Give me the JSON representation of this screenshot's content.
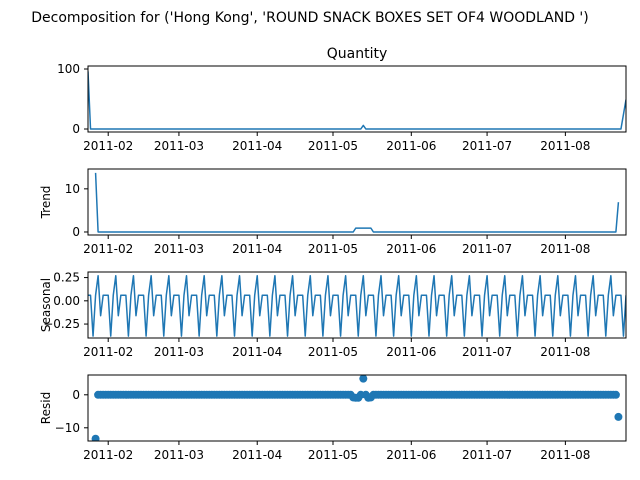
{
  "chart_data": {
    "type": "line",
    "suptitle": "Decomposition for ('Hong Kong', 'ROUND SNACK BOXES SET OF4 WOODLAND ')",
    "colors": {
      "series": "#1f77b4",
      "axis": "#000000"
    },
    "x_range": [
      "2011-01-24",
      "2011-08-25"
    ],
    "x_ticks": [
      "2011-02-01",
      "2011-03-01",
      "2011-04-01",
      "2011-05-01",
      "2011-06-01",
      "2011-07-01",
      "2011-08-01"
    ],
    "x_tick_labels": [
      "2011-02",
      "2011-03",
      "2011-04",
      "2011-05",
      "2011-06",
      "2011-07",
      "2011-08"
    ],
    "panels": [
      {
        "id": "observed",
        "type": "line",
        "title": "Quantity",
        "ylabel": "",
        "ylim": [
          -5,
          105
        ],
        "yticks": [
          0,
          100
        ],
        "yticklabels": [
          "0",
          "100"
        ],
        "points": [
          [
            "2011-01-24",
            96
          ],
          [
            "2011-01-25",
            0
          ],
          [
            "2011-05-12",
            0
          ],
          [
            "2011-05-13",
            6
          ],
          [
            "2011-05-14",
            0
          ],
          [
            "2011-08-23",
            0
          ],
          [
            "2011-08-25",
            49
          ]
        ]
      },
      {
        "id": "trend",
        "type": "line",
        "title": "",
        "ylabel": "Trend",
        "ylim": [
          -0.7,
          14.6
        ],
        "yticks": [
          0,
          10
        ],
        "yticklabels": [
          "0",
          "10"
        ],
        "points": [
          [
            "2011-01-27",
            13.7
          ],
          [
            "2011-01-28",
            0
          ],
          [
            "2011-05-09",
            0
          ],
          [
            "2011-05-10",
            0.9
          ],
          [
            "2011-05-16",
            0.9
          ],
          [
            "2011-05-17",
            0
          ],
          [
            "2011-08-21",
            0
          ],
          [
            "2011-08-22",
            6.9
          ]
        ]
      },
      {
        "id": "seasonal",
        "type": "line",
        "title": "",
        "ylabel": "Seasonal",
        "ylim": [
          -0.4,
          0.31
        ],
        "yticks": [
          0.25,
          0,
          -0.25
        ],
        "yticklabels": [
          "0.25",
          "0.00",
          "−0.25"
        ],
        "period_days": 7,
        "pattern_start": "2011-01-24",
        "pattern": [
          0.06,
          0.06,
          -0.38,
          0.06,
          0.27,
          -0.16,
          0.06
        ]
      },
      {
        "id": "resid",
        "type": "scatter",
        "title": "",
        "ylabel": "Resid",
        "ylim": [
          -14,
          6
        ],
        "yticks": [
          0,
          -10
        ],
        "yticklabels": [
          "0",
          "−10"
        ],
        "baseline": {
          "start": "2011-01-27",
          "end": "2011-08-22",
          "value": 0
        },
        "points": [
          [
            "2011-01-27",
            -13.3
          ],
          [
            "2011-05-09",
            -0.8
          ],
          [
            "2011-05-10",
            -0.9
          ],
          [
            "2011-05-11",
            -0.9
          ],
          [
            "2011-05-13",
            4.9
          ],
          [
            "2011-05-15",
            -0.9
          ],
          [
            "2011-05-16",
            -0.8
          ],
          [
            "2011-08-22",
            -6.7
          ]
        ]
      }
    ]
  }
}
